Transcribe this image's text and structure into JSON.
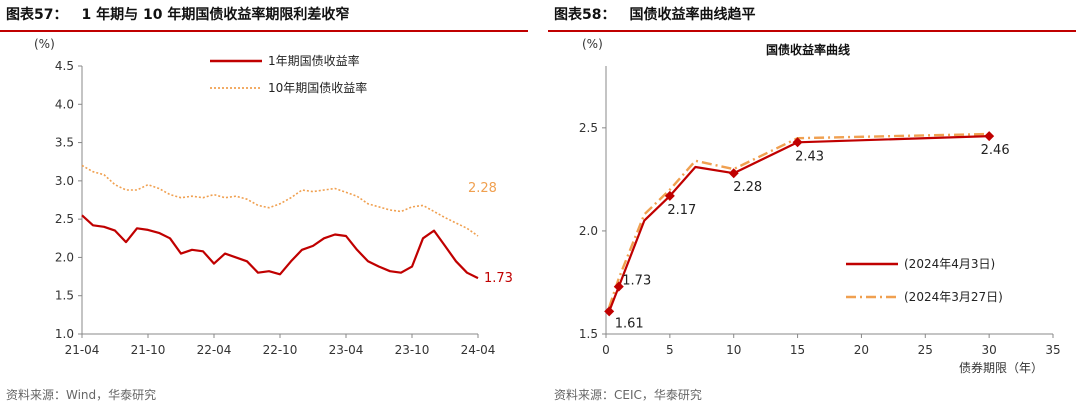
{
  "left": {
    "title_num": "图表57：",
    "title_text": "1 年期与 10 年期国债收益率期限利差收窄",
    "source": "资料来源：Wind，华泰研究",
    "colors": {
      "short": "#c00000",
      "long": "#f0a050"
    }
  },
  "right": {
    "title_num": "图表58：",
    "title_text": "国债收益率曲线趋平",
    "source": "资料来源：CEIC，华泰研究",
    "colors": {
      "a": "#c00000",
      "b": "#f0a050"
    }
  },
  "chart_data": [
    {
      "type": "line",
      "ylabel": "(%)",
      "ylim": [
        1.0,
        4.5
      ],
      "yticks": [
        "1.0",
        "1.5",
        "2.0",
        "2.5",
        "3.0",
        "3.5",
        "4.0",
        "4.5"
      ],
      "xticks": [
        "21-04",
        "21-10",
        "22-04",
        "22-10",
        "23-04",
        "23-10",
        "24-04"
      ],
      "x": [
        "21-04",
        "21-05",
        "21-06",
        "21-07",
        "21-08",
        "21-09",
        "21-10",
        "21-11",
        "21-12",
        "22-01",
        "22-02",
        "22-03",
        "22-04",
        "22-05",
        "22-06",
        "22-07",
        "22-08",
        "22-09",
        "22-10",
        "22-11",
        "22-12",
        "23-01",
        "23-02",
        "23-03",
        "23-04",
        "23-05",
        "23-06",
        "23-07",
        "23-08",
        "23-09",
        "23-10",
        "23-11",
        "23-12",
        "24-01",
        "24-02",
        "24-03",
        "24-04"
      ],
      "series": [
        {
          "name": "1年期国债收益率",
          "values": [
            2.55,
            2.42,
            2.4,
            2.35,
            2.2,
            2.38,
            2.36,
            2.32,
            2.25,
            2.05,
            2.1,
            2.08,
            1.92,
            2.05,
            2.0,
            1.95,
            1.8,
            1.82,
            1.78,
            1.95,
            2.1,
            2.15,
            2.25,
            2.3,
            2.28,
            2.1,
            1.95,
            1.88,
            1.82,
            1.8,
            1.88,
            2.25,
            2.35,
            2.15,
            1.95,
            1.8,
            1.73
          ]
        },
        {
          "name": "10年期国债收益率",
          "values": [
            3.2,
            3.12,
            3.08,
            2.95,
            2.88,
            2.88,
            2.95,
            2.9,
            2.82,
            2.78,
            2.8,
            2.78,
            2.82,
            2.78,
            2.8,
            2.76,
            2.68,
            2.65,
            2.7,
            2.78,
            2.88,
            2.86,
            2.88,
            2.9,
            2.85,
            2.8,
            2.7,
            2.66,
            2.62,
            2.6,
            2.66,
            2.68,
            2.6,
            2.52,
            2.45,
            2.38,
            2.28
          ]
        }
      ],
      "end_labels": {
        "long": "2.28",
        "short": "1.73"
      }
    },
    {
      "type": "line",
      "title": "国债收益率曲线",
      "ylabel": "(%)",
      "xlabel": "债券期限（年）",
      "ylim": [
        1.5,
        2.8
      ],
      "yticks": [
        "1.5",
        "2.0",
        "2.5"
      ],
      "xlim": [
        0,
        35
      ],
      "xticks": [
        "0",
        "5",
        "10",
        "15",
        "20",
        "25",
        "30",
        "35"
      ],
      "series": [
        {
          "name": "(2024年4月3日)",
          "x": [
            0.25,
            1,
            3,
            5,
            7,
            10,
            15,
            30
          ],
          "values": [
            1.61,
            1.73,
            2.05,
            2.17,
            2.31,
            2.28,
            2.43,
            2.46
          ],
          "markers": [
            0.25,
            1,
            5,
            10,
            15,
            30
          ],
          "labels": [
            "1.61",
            "1.73",
            "2.17",
            "2.28",
            "2.43",
            "2.46"
          ]
        },
        {
          "name": "(2024年3月27日)",
          "x": [
            0.25,
            1,
            3,
            5,
            7,
            10,
            15,
            30
          ],
          "values": [
            1.63,
            1.77,
            2.08,
            2.2,
            2.34,
            2.3,
            2.45,
            2.47
          ]
        }
      ]
    }
  ]
}
